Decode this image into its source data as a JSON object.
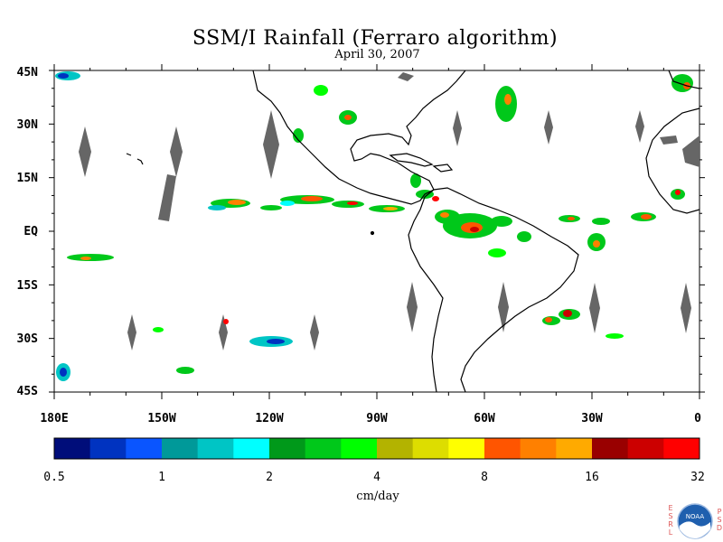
{
  "title": "SSM/I Rainfall (Ferraro algorithm)",
  "subtitle": "April 30, 2007",
  "latitude_labels": [
    "45N",
    "30N",
    "15N",
    "EQ",
    "15S",
    "30S",
    "45S"
  ],
  "longitude_labels": [
    "180E",
    "150W",
    "120W",
    "90W",
    "60W",
    "30W",
    "0"
  ],
  "colorbar": {
    "colors": [
      "#000d7a",
      "#0033c0",
      "#0a55ff",
      "#009999",
      "#00c5c5",
      "#00ffff",
      "#00991a",
      "#00c81a",
      "#00ff00",
      "#b3b300",
      "#dddd00",
      "#ffff00",
      "#ff5500",
      "#ff8000",
      "#ffaa00",
      "#990000",
      "#cc0000",
      "#ff0000"
    ],
    "tick_labels": [
      "0.5",
      "1",
      "2",
      "4",
      "8",
      "16",
      "32"
    ]
  },
  "unit_label": "cm/day",
  "logo": {
    "text": "NOAA",
    "left_letters": "ESRL",
    "right_letters": "PSD"
  },
  "colors": {
    "land_outline": "#000000",
    "no_data": "#666666",
    "frame": "#000000"
  }
}
